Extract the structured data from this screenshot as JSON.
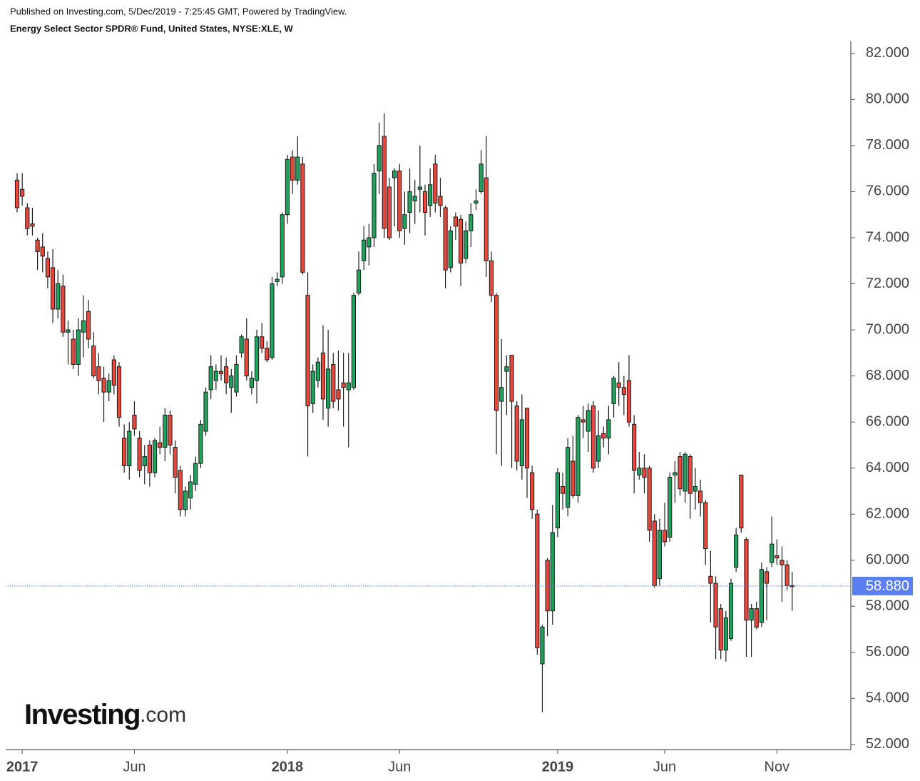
{
  "chart_data": {
    "type": "candlestick",
    "published": "Published on Investing.com, 5/Dec/2019 - 7:25:45 GMT, Powered by TradingView.",
    "title": "Energy Select Sector SPDR® Fund, United States, NYSE:XLE, W",
    "logo": {
      "main": "Investing",
      "suffix": ".com"
    },
    "up_color": "#1fa35c",
    "down_color": "#e8473b",
    "price_line_color": "#5b7ff0",
    "ylim": [
      51.78,
      82.46
    ],
    "yticks": [
      {
        "value": 52,
        "label": "52.000"
      },
      {
        "value": 54,
        "label": "54.000"
      },
      {
        "value": 56,
        "label": "56.000"
      },
      {
        "value": 58,
        "label": "58.000"
      },
      {
        "value": 60,
        "label": "60.000"
      },
      {
        "value": 62,
        "label": "62.000"
      },
      {
        "value": 64,
        "label": "64.000"
      },
      {
        "value": 66,
        "label": "66.000"
      },
      {
        "value": 68,
        "label": "68.000"
      },
      {
        "value": 70,
        "label": "70.000"
      },
      {
        "value": 72,
        "label": "72.000"
      },
      {
        "value": 74,
        "label": "74.000"
      },
      {
        "value": 76,
        "label": "76.000"
      },
      {
        "value": 78,
        "label": "78.000"
      },
      {
        "value": 80,
        "label": "80.000"
      },
      {
        "value": 82,
        "label": "82.000"
      }
    ],
    "last_price_label": "58.880",
    "categories": [
      null,
      "2017",
      null,
      null,
      null,
      null,
      null,
      null,
      null,
      null,
      null,
      null,
      null,
      null,
      null,
      null,
      null,
      null,
      null,
      null,
      null,
      null,
      null,
      "Jun",
      null,
      null,
      null,
      null,
      null,
      null,
      null,
      null,
      null,
      null,
      null,
      null,
      null,
      null,
      null,
      null,
      null,
      null,
      null,
      null,
      null,
      null,
      null,
      null,
      null,
      null,
      null,
      null,
      null,
      "2018",
      null,
      null,
      null,
      null,
      null,
      null,
      null,
      null,
      null,
      null,
      null,
      null,
      null,
      null,
      null,
      null,
      null,
      null,
      null,
      null,
      null,
      "Jun",
      null,
      null,
      null,
      null,
      null,
      null,
      null,
      null,
      null,
      null,
      null,
      null,
      null,
      null,
      null,
      null,
      null,
      null,
      null,
      null,
      null,
      null,
      null,
      null,
      null,
      null,
      null,
      null,
      null,
      null,
      "2019",
      null,
      null,
      null,
      null,
      null,
      null,
      null,
      null,
      null,
      null,
      null,
      null,
      null,
      null,
      null,
      null,
      null,
      null,
      null,
      null,
      "Jun",
      null,
      null,
      null,
      null,
      null,
      null,
      null,
      null,
      null,
      null,
      null,
      null,
      null,
      null,
      null,
      null,
      null,
      null,
      null,
      null,
      null,
      "Nov",
      null,
      null,
      null
    ],
    "ohlc": [
      [
        76.5,
        76.8,
        75.1,
        75.3
      ],
      [
        76.1,
        76.8,
        75.4,
        75.8
      ],
      [
        75.3,
        75.5,
        74.1,
        74.4
      ],
      [
        74.6,
        75.3,
        74.1,
        74.5
      ],
      [
        73.9,
        74.0,
        72.6,
        73.4
      ],
      [
        73.6,
        74.2,
        72.5,
        73.2
      ],
      [
        73.1,
        73.4,
        71.8,
        72.3
      ],
      [
        72.7,
        73.5,
        70.3,
        70.9
      ],
      [
        70.9,
        72.6,
        70.5,
        72.0
      ],
      [
        71.9,
        72.4,
        69.7,
        69.9
      ],
      [
        69.9,
        70.4,
        68.5,
        70.0
      ],
      [
        69.6,
        70.0,
        68.3,
        68.5
      ],
      [
        68.5,
        70.5,
        68.0,
        70.0
      ],
      [
        69.9,
        71.5,
        68.8,
        70.4
      ],
      [
        70.8,
        71.3,
        69.2,
        69.6
      ],
      [
        69.3,
        69.9,
        67.9,
        68.0
      ],
      [
        68.4,
        69.0,
        67.2,
        67.8
      ],
      [
        67.9,
        68.4,
        66.0,
        67.3
      ],
      [
        67.3,
        68.1,
        66.9,
        67.8
      ],
      [
        68.7,
        68.9,
        67.2,
        67.6
      ],
      [
        68.4,
        68.6,
        65.8,
        66.2
      ],
      [
        65.3,
        65.9,
        63.8,
        64.1
      ],
      [
        64.1,
        66.0,
        63.5,
        65.6
      ],
      [
        66.3,
        66.9,
        65.4,
        65.7
      ],
      [
        65.3,
        65.6,
        63.6,
        63.9
      ],
      [
        64.1,
        65.0,
        63.3,
        64.5
      ],
      [
        65.0,
        65.2,
        63.2,
        63.8
      ],
      [
        63.8,
        65.3,
        63.6,
        65.2
      ],
      [
        65.1,
        65.8,
        64.6,
        64.9
      ],
      [
        64.9,
        66.6,
        64.3,
        66.3
      ],
      [
        66.3,
        66.5,
        64.6,
        65.0
      ],
      [
        64.9,
        65.2,
        62.9,
        63.6
      ],
      [
        63.9,
        64.1,
        61.9,
        62.2
      ],
      [
        62.2,
        63.2,
        61.9,
        63.0
      ],
      [
        62.7,
        63.7,
        62.2,
        63.4
      ],
      [
        63.3,
        64.5,
        63.0,
        64.2
      ],
      [
        64.2,
        66.1,
        64.0,
        65.9
      ],
      [
        65.6,
        67.5,
        65.4,
        67.3
      ],
      [
        67.4,
        68.9,
        67.0,
        68.4
      ],
      [
        67.8,
        68.5,
        67.4,
        68.2
      ],
      [
        68.2,
        68.9,
        67.8,
        68.1
      ],
      [
        68.4,
        68.8,
        67.2,
        67.7
      ],
      [
        67.5,
        68.3,
        66.4,
        68.0
      ],
      [
        67.3,
        68.9,
        67.1,
        68.5
      ],
      [
        69.0,
        69.8,
        68.8,
        69.7
      ],
      [
        69.6,
        70.5,
        67.8,
        68.0
      ],
      [
        67.5,
        68.2,
        67.2,
        67.9
      ],
      [
        67.8,
        70.0,
        66.8,
        69.7
      ],
      [
        69.7,
        70.3,
        69.0,
        69.2
      ],
      [
        69.2,
        69.5,
        68.6,
        68.7
      ],
      [
        68.8,
        72.3,
        68.7,
        72.0
      ],
      [
        72.1,
        72.5,
        71.9,
        72.2
      ],
      [
        72.3,
        75.1,
        72.0,
        75.0
      ],
      [
        75.0,
        77.6,
        74.6,
        77.4
      ],
      [
        77.5,
        77.8,
        75.9,
        76.5
      ],
      [
        76.5,
        78.4,
        76.3,
        77.5
      ],
      [
        77.2,
        77.5,
        72.4,
        72.5
      ],
      [
        71.5,
        72.5,
        64.5,
        66.7
      ],
      [
        66.8,
        68.5,
        66.4,
        68.2
      ],
      [
        67.8,
        68.8,
        67.5,
        68.6
      ],
      [
        69.0,
        70.2,
        66.1,
        67.0
      ],
      [
        66.6,
        70.0,
        65.8,
        68.3
      ],
      [
        68.5,
        69.0,
        66.6,
        66.9
      ],
      [
        67.4,
        69.1,
        66.5,
        67.0
      ],
      [
        67.7,
        69.0,
        65.8,
        67.5
      ],
      [
        67.4,
        69.0,
        64.9,
        67.7
      ],
      [
        67.5,
        71.6,
        67.4,
        71.5
      ],
      [
        71.6,
        73.4,
        71.5,
        72.6
      ],
      [
        73.0,
        74.5,
        72.6,
        73.9
      ],
      [
        73.6,
        74.6,
        72.8,
        74.0
      ],
      [
        74.0,
        77.2,
        73.6,
        76.8
      ],
      [
        76.9,
        79.0,
        75.9,
        78.0
      ],
      [
        78.4,
        79.4,
        74.0,
        74.4
      ],
      [
        76.2,
        76.6,
        73.9,
        74.0
      ],
      [
        76.6,
        77.0,
        74.5,
        76.9
      ],
      [
        76.9,
        77.2,
        74.0,
        74.3
      ],
      [
        74.4,
        76.0,
        73.7,
        75.0
      ],
      [
        75.1,
        77.0,
        74.2,
        76.0
      ],
      [
        75.6,
        76.5,
        74.6,
        75.8
      ],
      [
        76.1,
        78.0,
        75.1,
        76.2
      ],
      [
        76.0,
        76.3,
        74.1,
        75.1
      ],
      [
        75.4,
        77.0,
        74.9,
        76.3
      ],
      [
        77.2,
        77.6,
        75.1,
        75.5
      ],
      [
        75.8,
        76.6,
        74.9,
        75.4
      ],
      [
        75.3,
        75.4,
        71.8,
        72.6
      ],
      [
        72.7,
        74.5,
        72.5,
        74.3
      ],
      [
        74.9,
        75.1,
        73.9,
        74.5
      ],
      [
        74.8,
        75.0,
        71.9,
        72.9
      ],
      [
        73.1,
        74.7,
        72.9,
        74.3
      ],
      [
        74.3,
        75.5,
        73.6,
        75.0
      ],
      [
        75.5,
        76.1,
        75.2,
        75.6
      ],
      [
        76.0,
        77.8,
        75.9,
        77.2
      ],
      [
        76.6,
        78.4,
        72.3,
        73.0
      ],
      [
        73.0,
        73.4,
        71.2,
        71.5
      ],
      [
        71.5,
        71.6,
        64.6,
        66.5
      ],
      [
        66.9,
        69.6,
        64.1,
        67.5
      ],
      [
        68.2,
        68.9,
        66.3,
        68.4
      ],
      [
        68.9,
        68.9,
        64.0,
        66.9
      ],
      [
        66.7,
        66.9,
        63.9,
        64.3
      ],
      [
        64.1,
        67.2,
        63.5,
        66.1
      ],
      [
        66.6,
        66.6,
        62.7,
        64.0
      ],
      [
        63.8,
        64.1,
        61.8,
        62.2
      ],
      [
        62.0,
        62.2,
        55.9,
        56.2
      ],
      [
        55.5,
        57.2,
        53.4,
        57.1
      ],
      [
        60.0,
        60.1,
        56.7,
        57.8
      ],
      [
        57.8,
        62.4,
        57.2,
        61.2
      ],
      [
        61.4,
        64.0,
        61.0,
        63.8
      ],
      [
        63.2,
        63.8,
        62.2,
        62.9
      ],
      [
        62.3,
        65.3,
        61.9,
        64.9
      ],
      [
        64.3,
        65.4,
        62.7,
        62.8
      ],
      [
        62.8,
        66.3,
        62.5,
        66.2
      ],
      [
        66.1,
        66.7,
        65.3,
        66.0
      ],
      [
        65.6,
        66.8,
        64.7,
        66.5
      ],
      [
        66.7,
        66.9,
        63.8,
        64.0
      ],
      [
        64.3,
        66.5,
        64.0,
        65.4
      ],
      [
        65.5,
        65.8,
        64.9,
        65.3
      ],
      [
        65.3,
        66.7,
        64.6,
        66.1
      ],
      [
        66.8,
        68.0,
        66.2,
        67.9
      ],
      [
        67.7,
        68.6,
        66.7,
        67.5
      ],
      [
        67.5,
        68.0,
        66.3,
        67.2
      ],
      [
        67.8,
        68.9,
        65.8,
        66.0
      ],
      [
        65.9,
        66.3,
        62.9,
        63.9
      ],
      [
        63.7,
        64.7,
        63.5,
        64.0
      ],
      [
        64.0,
        64.6,
        62.9,
        63.6
      ],
      [
        64.0,
        64.1,
        60.8,
        61.3
      ],
      [
        61.7,
        62.0,
        58.8,
        58.9
      ],
      [
        59.2,
        61.8,
        58.9,
        61.3
      ],
      [
        61.3,
        62.5,
        60.6,
        60.8
      ],
      [
        61.0,
        63.8,
        60.8,
        63.6
      ],
      [
        63.7,
        64.3,
        62.5,
        63.8
      ],
      [
        64.5,
        64.7,
        62.8,
        63.1
      ],
      [
        63.0,
        64.7,
        62.5,
        64.6
      ],
      [
        64.5,
        64.6,
        61.8,
        62.9
      ],
      [
        63.0,
        64.0,
        62.2,
        63.2
      ],
      [
        63.0,
        63.5,
        61.9,
        62.5
      ],
      [
        62.5,
        62.6,
        59.8,
        60.5
      ],
      [
        59.3,
        60.4,
        57.3,
        59.0
      ],
      [
        59.0,
        59.3,
        55.7,
        57.1
      ],
      [
        57.9,
        58.1,
        55.7,
        56.1
      ],
      [
        56.1,
        57.8,
        55.6,
        57.5
      ],
      [
        56.6,
        59.2,
        56.5,
        59.0
      ],
      [
        59.7,
        61.4,
        59.5,
        61.1
      ],
      [
        63.7,
        63.7,
        61.2,
        61.4
      ],
      [
        60.9,
        61.0,
        55.8,
        57.4
      ],
      [
        57.4,
        58.1,
        55.8,
        57.9
      ],
      [
        57.9,
        58.2,
        57.0,
        57.1
      ],
      [
        57.3,
        59.9,
        57.1,
        59.6
      ],
      [
        59.5,
        59.7,
        57.4,
        59.0
      ],
      [
        59.9,
        61.9,
        59.7,
        60.7
      ],
      [
        60.2,
        60.9,
        59.8,
        60.1
      ],
      [
        60.0,
        60.6,
        58.2,
        59.8
      ],
      [
        59.8,
        60.0,
        58.7,
        58.9
      ],
      [
        58.9,
        59.5,
        57.8,
        58.88
      ]
    ]
  }
}
